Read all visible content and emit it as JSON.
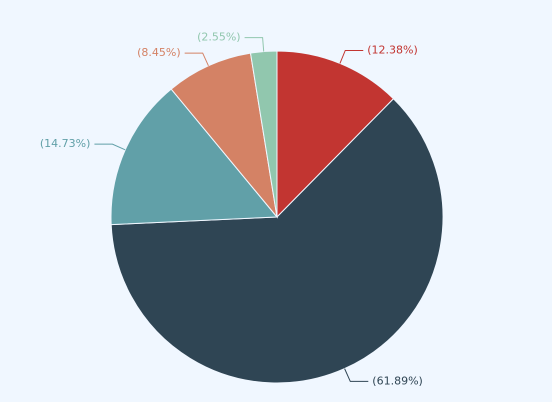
{
  "chart_data": {
    "type": "pie",
    "values": [
      12.38,
      61.89,
      14.73,
      8.45,
      2.55
    ],
    "value_labels": [
      "(12.38%)",
      "(61.89%)",
      "(14.73%)",
      "(8.45%)",
      "(2.55%)"
    ],
    "colors": [
      "#c23531",
      "#2f4554",
      "#61a0a8",
      "#d48265",
      "#91c7ae"
    ]
  }
}
